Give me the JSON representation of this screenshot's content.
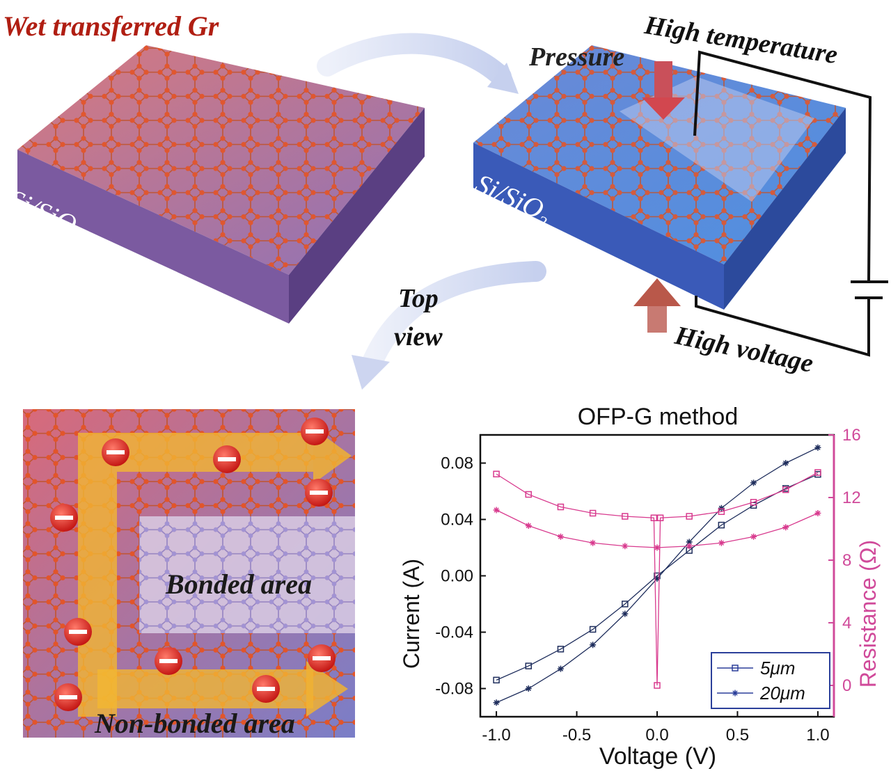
{
  "labels": {
    "wet_transferred": "Wet transferred Gr",
    "pressure": "Pressure",
    "high_temperature": "High temperature",
    "high_voltage": "High voltage",
    "top": "Top",
    "view": "view",
    "bonded_area": "Bonded area",
    "non_bonded_area": "Non-bonded area",
    "substrate": "Si/SiO",
    "substrate_sub": "2"
  },
  "chart_data": {
    "type": "line",
    "title": "OFP-G method",
    "xlabel": "Voltage (V)",
    "ylabel_left": "Current (A)",
    "ylabel_right": "Resistance (Ω)",
    "xlim": [
      -1.1,
      1.1
    ],
    "ylim_left": [
      -0.1,
      0.1
    ],
    "ylim_right": [
      -2,
      16
    ],
    "xticks": [
      "-1.0",
      "-0.5",
      "0.0",
      "0.5",
      "1.0"
    ],
    "yticks_left": [
      "-0.08",
      "-0.04",
      "0.00",
      "0.04",
      "0.08"
    ],
    "yticks_right": [
      "0",
      "4",
      "8",
      "12",
      "16"
    ],
    "legend_position": "bottom-right",
    "series": [
      {
        "name": "5μm",
        "axis": "left",
        "kind": "current",
        "marker": "square",
        "x": [
          -1.0,
          -0.8,
          -0.6,
          -0.4,
          -0.2,
          0.0,
          0.2,
          0.4,
          0.6,
          0.8,
          1.0
        ],
        "y": [
          -0.074,
          -0.064,
          -0.052,
          -0.038,
          -0.02,
          0.0,
          0.018,
          0.036,
          0.05,
          0.062,
          0.072
        ]
      },
      {
        "name": "20μm",
        "axis": "left",
        "kind": "current",
        "marker": "star",
        "x": [
          -1.0,
          -0.8,
          -0.6,
          -0.4,
          -0.2,
          0.0,
          0.2,
          0.4,
          0.6,
          0.8,
          1.0
        ],
        "y": [
          -0.09,
          -0.08,
          -0.066,
          -0.049,
          -0.027,
          -0.002,
          0.024,
          0.048,
          0.066,
          0.08,
          0.091
        ]
      },
      {
        "name": "5μm",
        "axis": "right",
        "kind": "resistance",
        "marker": "square",
        "x": [
          -1.0,
          -0.8,
          -0.6,
          -0.4,
          -0.2,
          -0.02,
          0.0,
          0.02,
          0.2,
          0.4,
          0.6,
          0.8,
          1.0
        ],
        "y": [
          13.5,
          12.2,
          11.4,
          11.0,
          10.8,
          10.7,
          0.0,
          10.7,
          10.8,
          11.1,
          11.7,
          12.5,
          13.6
        ]
      },
      {
        "name": "20μm",
        "axis": "right",
        "kind": "resistance",
        "marker": "star",
        "x": [
          -1.0,
          -0.8,
          -0.6,
          -0.4,
          -0.2,
          0.0,
          0.2,
          0.4,
          0.6,
          0.8,
          1.0
        ],
        "y": [
          11.2,
          10.2,
          9.5,
          9.1,
          8.9,
          8.8,
          8.9,
          9.1,
          9.5,
          10.1,
          11.0
        ]
      }
    ],
    "colors": {
      "current": "#1e2d5c",
      "resistance": "#d83a8e",
      "right_axis": "#d04a9a"
    }
  }
}
